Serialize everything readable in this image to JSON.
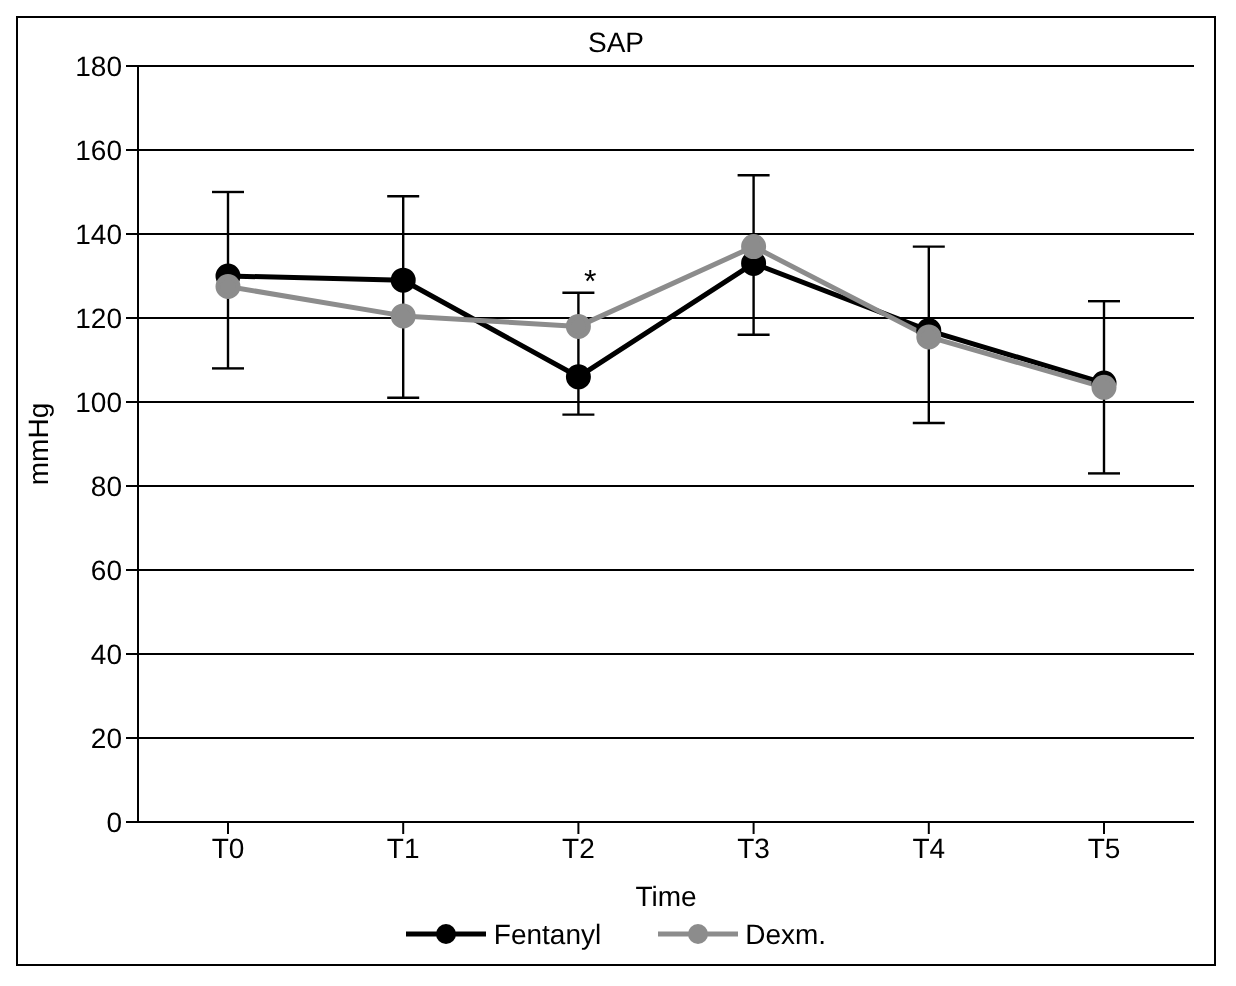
{
  "chart_data": {
    "type": "line",
    "title": "SAP",
    "xlabel": "Time",
    "ylabel": "mmHg",
    "categories": [
      "T0",
      "T1",
      "T2",
      "T3",
      "T4",
      "T5"
    ],
    "series": [
      {
        "name": "Fentanyl",
        "color": "#000000",
        "values": [
          130,
          129,
          106,
          133,
          117,
          104.5
        ],
        "errors": [
          [
            108,
            150
          ],
          [
            101,
            149
          ],
          [
            97,
            126
          ],
          [
            116,
            154
          ],
          [
            95,
            137
          ],
          [
            83,
            124
          ]
        ]
      },
      {
        "name": "Dexm.",
        "color": "#8c8c8c",
        "values": [
          127.5,
          120.5,
          118,
          137,
          115.5,
          103.5
        ]
      }
    ],
    "ylim": [
      0,
      180
    ],
    "yticks": [
      0,
      20,
      40,
      60,
      80,
      100,
      120,
      140,
      160,
      180
    ],
    "grid": "y",
    "legend": "bottom",
    "marker": "circle",
    "line_style": "solid",
    "annotations": [
      "*"
    ]
  }
}
